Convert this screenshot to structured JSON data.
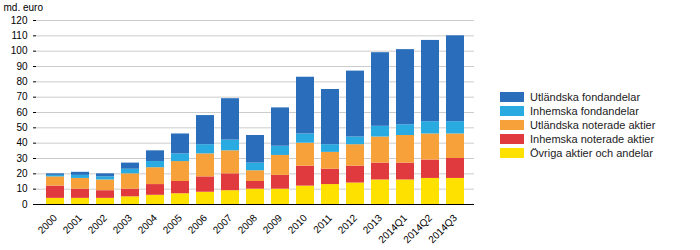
{
  "chart_data": {
    "type": "bar",
    "stacked": true,
    "grid": true,
    "y_label": "md. euro",
    "categories": [
      "2000",
      "2001",
      "2002",
      "2003",
      "2004",
      "2005",
      "2006",
      "2007",
      "2008",
      "2009",
      "2010",
      "2011",
      "2012",
      "2013",
      "2014Q1",
      "2014Q2",
      "2014Q3"
    ],
    "series": [
      {
        "name": "Övriga aktier och andelar",
        "color": "#ffe100",
        "values": [
          4,
          4,
          4,
          5,
          6,
          7,
          8,
          9,
          10,
          10,
          12,
          13,
          14,
          16,
          16,
          17,
          17
        ]
      },
      {
        "name": "Inhemska noterade aktier",
        "color": "#e03a3e",
        "values": [
          8,
          6,
          5,
          5,
          7,
          8,
          10,
          11,
          5,
          9,
          13,
          10,
          11,
          11,
          11,
          12,
          13
        ]
      },
      {
        "name": "Utländska noterade aktier",
        "color": "#f7a13a",
        "values": [
          6,
          7,
          7,
          10,
          11,
          13,
          15,
          15,
          7,
          13,
          15,
          11,
          14,
          17,
          18,
          17,
          16
        ]
      },
      {
        "name": "Inhemska fondandelar",
        "color": "#29abe2",
        "values": [
          1,
          2,
          2,
          3,
          4,
          5,
          6,
          7,
          5,
          6,
          6,
          5,
          5,
          7,
          7,
          8,
          8
        ]
      },
      {
        "name": "Utländska fondandelar",
        "color": "#2a6ebb",
        "values": [
          1,
          2,
          2,
          4,
          7,
          13,
          19,
          27,
          18,
          25,
          37,
          36,
          43,
          48,
          49,
          53,
          56
        ]
      }
    ],
    "ylim": [
      0,
      120
    ],
    "yticks": [
      0,
      10,
      20,
      30,
      40,
      50,
      60,
      70,
      80,
      90,
      100,
      110,
      120
    ],
    "legend": "right"
  }
}
